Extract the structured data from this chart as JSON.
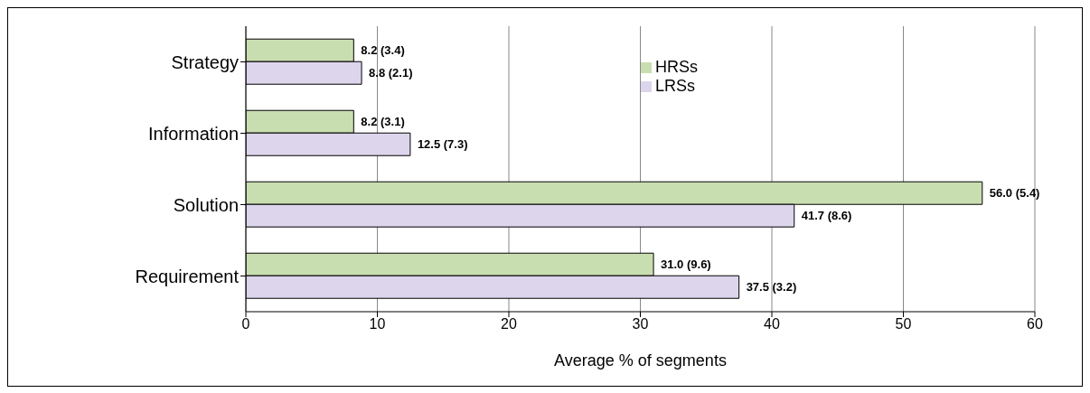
{
  "chart_data": {
    "type": "bar",
    "orientation": "horizontal",
    "xlabel": "Average % of segments",
    "categories": [
      "Strategy",
      "Information",
      "Solution",
      "Requirement"
    ],
    "series": [
      {
        "name": "HRSs",
        "color": "#c9deb0",
        "values": [
          8.2,
          8.2,
          56.0,
          31.0
        ],
        "value_labels": [
          "8.2 (3.4)",
          "8.2 (3.1)",
          "56.0 (5.4)",
          "31.0 (9.6)"
        ]
      },
      {
        "name": "LRSs",
        "color": "#ddd5ec",
        "values": [
          8.8,
          12.5,
          41.7,
          37.5
        ],
        "value_labels": [
          "8.8 (2.1)",
          "12.5 (7.3)",
          "41.7 (8.6)",
          "37.5 (3.2)"
        ]
      }
    ],
    "xlim": [
      0,
      60
    ],
    "xticks": [
      0,
      10,
      20,
      30,
      40,
      50,
      60
    ],
    "grid": "x",
    "legend": "top"
  }
}
